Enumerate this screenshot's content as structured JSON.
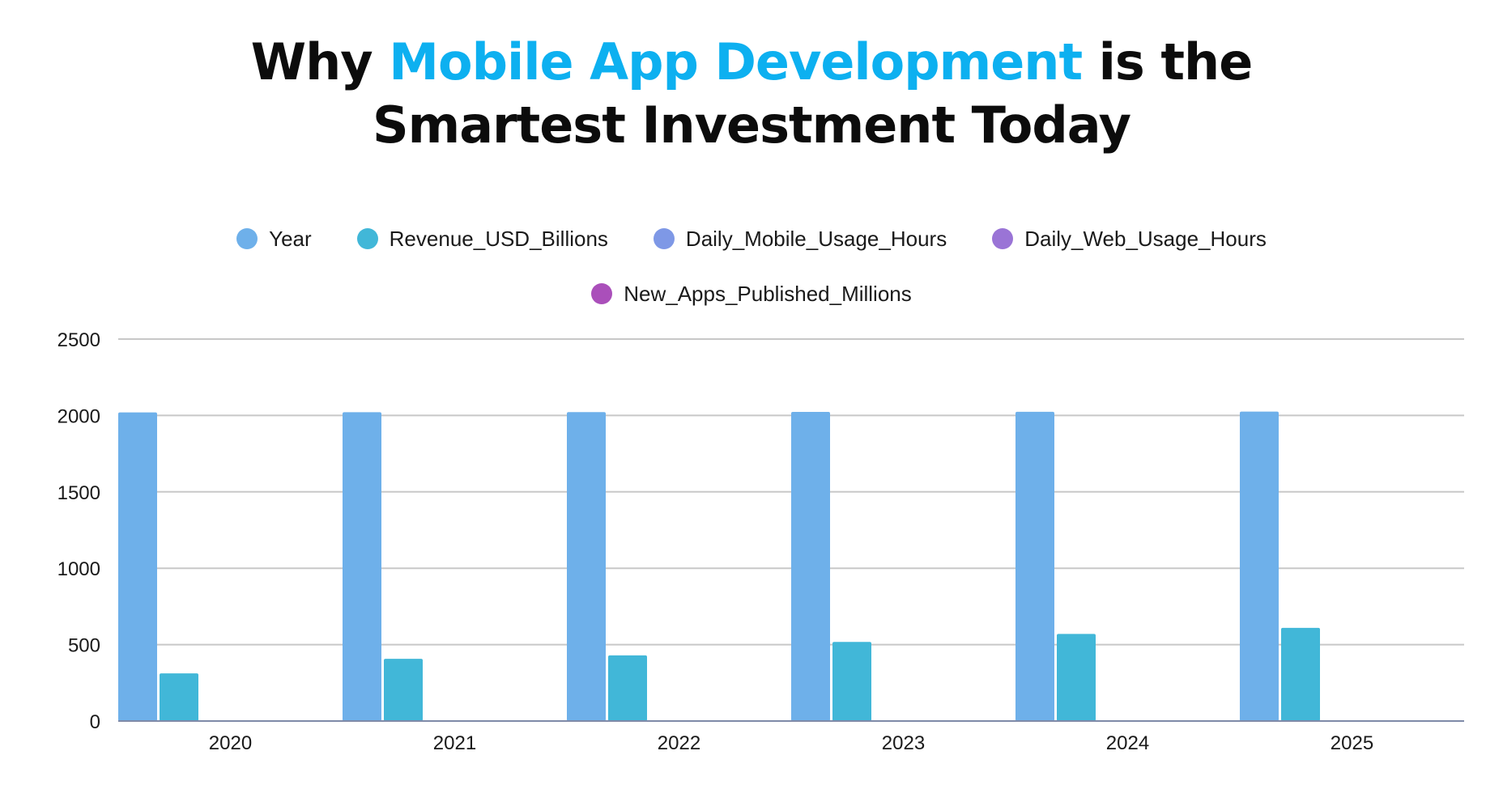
{
  "title": {
    "part1": "Why",
    "highlight": "Mobile App Development",
    "part2": "is the",
    "line2": "Smartest Investment Today",
    "highlight_color": "#0db0f0"
  },
  "chart_data": {
    "type": "bar",
    "categories": [
      "2020",
      "2021",
      "2022",
      "2023",
      "2024",
      "2025"
    ],
    "series": [
      {
        "name": "Year",
        "color": "#6eb0ea",
        "values": [
          2020,
          2021,
          2022,
          2023,
          2024,
          2025
        ]
      },
      {
        "name": "Revenue_USD_Billions",
        "color": "#41b7d8",
        "values": [
          312,
          407,
          430,
          518,
          570,
          610
        ]
      },
      {
        "name": "Daily_Mobile_Usage_Hours",
        "color": "#7e98e6",
        "values": [
          4.5,
          4.8,
          5.0,
          5.2,
          5.4,
          5.6
        ]
      },
      {
        "name": "Daily_Web_Usage_Hours",
        "color": "#9a74d6",
        "values": [
          2.5,
          2.4,
          2.3,
          2.2,
          2.1,
          2.0
        ]
      },
      {
        "name": "New_Apps_Published_Millions",
        "color": "#aa4fba",
        "values": [
          1.8,
          1.9,
          2.0,
          2.1,
          2.2,
          2.3
        ]
      }
    ],
    "yticks": [
      "0",
      "500",
      "1000",
      "1500",
      "2000",
      "2500"
    ],
    "ylim": [
      0,
      2500
    ],
    "grid": true,
    "legend_position": "top-center"
  }
}
